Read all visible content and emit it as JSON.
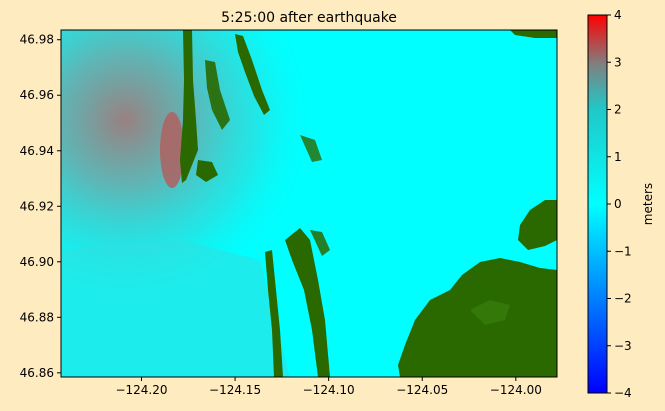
{
  "title": "5:25:00 after earthquake",
  "map": {
    "xlim": [
      -124.243,
      -123.978
    ],
    "ylim": [
      46.8585,
      46.9835
    ],
    "x_ticks": [
      -124.2,
      -124.15,
      -124.1,
      -124.05,
      -124.0
    ],
    "x_tick_labels": [
      "−124.20",
      "−124.15",
      "−124.10",
      "−124.05",
      "−124.00"
    ],
    "y_ticks": [
      46.86,
      46.88,
      46.9,
      46.92,
      46.94,
      46.96,
      46.98
    ],
    "y_tick_labels": [
      "46.86",
      "46.88",
      "46.90",
      "46.92",
      "46.94",
      "46.96",
      "46.98"
    ],
    "water_color": "#00FFFF",
    "land_color": "#2A6800"
  },
  "colorbar": {
    "label": "meters",
    "range": [
      -4,
      4
    ],
    "ticks": [
      -4,
      -3,
      -2,
      -1,
      0,
      1,
      2,
      3,
      4
    ],
    "tick_labels": [
      "−4",
      "−3",
      "−2",
      "−1",
      "0",
      "1",
      "2",
      "3",
      "4"
    ],
    "colors": [
      "#0000FF",
      "#00FFFF",
      "#FF0000"
    ]
  }
}
